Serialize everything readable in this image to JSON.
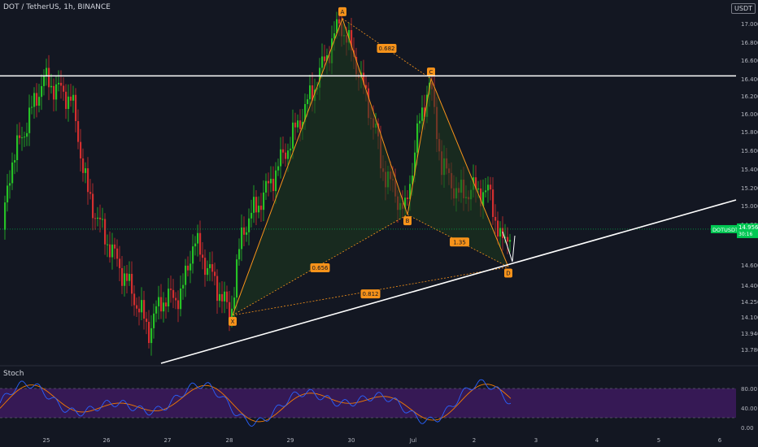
{
  "header": {
    "title": "DOT / TetherUS, 1h, BINANCE",
    "currency": "USDT",
    "stoch_label": "Stoch"
  },
  "price_axis": {
    "ticks": [
      "17.000",
      "16.800",
      "16.600",
      "16.400",
      "16.200",
      "16.000",
      "15.800",
      "15.600",
      "15.400",
      "15.200",
      "15.000",
      "14.800",
      "14.600",
      "14.400",
      "14.250",
      "14.100",
      "13.940",
      "13.780"
    ],
    "last_symbol": "DOTUSDT",
    "last_price": "14.956",
    "countdown": "30:16"
  },
  "stoch_axis": {
    "ticks": [
      "80.00",
      "40.00",
      "0.00"
    ]
  },
  "time_axis": {
    "ticks": [
      "25",
      "26",
      "27",
      "28",
      "29",
      "30",
      "Jul",
      "2",
      "3",
      "4",
      "5",
      "6"
    ]
  },
  "pattern": {
    "points": [
      {
        "label": "X",
        "price": 14.1
      },
      {
        "label": "A",
        "price": 17.05
      },
      {
        "label": "B",
        "price": 15.1
      },
      {
        "label": "C",
        "price": 16.45
      },
      {
        "label": "D",
        "price": 14.58
      }
    ],
    "ratios": [
      "0.682",
      "0.656",
      "1.35",
      "0.812"
    ]
  },
  "levels": {
    "resistance": 16.48,
    "current": 14.956
  },
  "colors": {
    "bg": "#131722",
    "up": "#26c126",
    "down": "#d32f2f",
    "pattern": "#f7931a",
    "fill": "#1e3a1e",
    "stoch_band": "#3d1a5e",
    "k_line": "#2962ff",
    "d_line": "#f57c00",
    "accent_green": "#00c853"
  }
}
